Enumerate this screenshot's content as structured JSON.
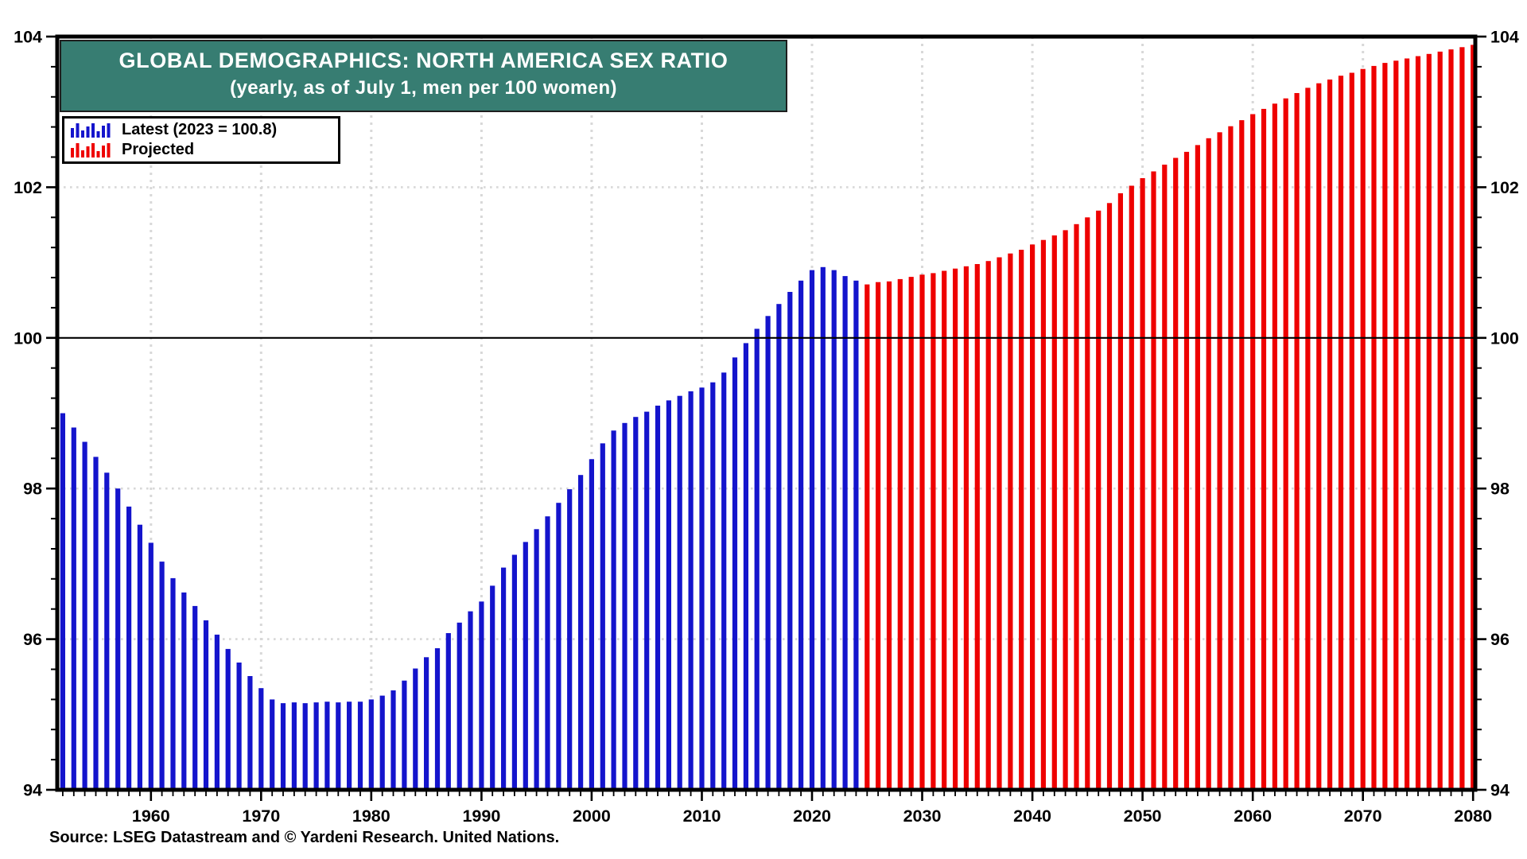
{
  "title": {
    "line1": "GLOBAL DEMOGRAPHICS: NORTH AMERICA SEX RATIO",
    "line2": "(yearly, as of July 1, men per 100 women)"
  },
  "legend": {
    "items": [
      {
        "label": "Latest (2023 = 100.8)",
        "color": "#1414CC"
      },
      {
        "label": "Projected",
        "color": "#EE0000"
      }
    ]
  },
  "source": "Source: LSEG Datastream and © Yardeni Research. United Nations.",
  "colors": {
    "title_background": "#377D72",
    "title_text": "#FFFFFF",
    "latest_bar": "#1414CC",
    "projected_bar": "#EE0000",
    "gridline": "#D8D8D8",
    "axis": "#000000",
    "reference_line": "#000000"
  },
  "chart_data": {
    "type": "bar",
    "title": "GLOBAL DEMOGRAPHICS: NORTH AMERICA SEX RATIO",
    "subtitle": "(yearly, as of July 1, men per 100 women)",
    "xlabel": "",
    "ylabel": "men per 100 women",
    "ylim": [
      94,
      104
    ],
    "x_range": [
      1951.5,
      2080.2
    ],
    "y_major_ticks": [
      94,
      96,
      98,
      100,
      102,
      104
    ],
    "y_minor_step": 0.4,
    "x_major_ticks": [
      1960,
      1970,
      1980,
      1990,
      2000,
      2010,
      2020,
      2030,
      2040,
      2050,
      2060,
      2070,
      2080
    ],
    "x_minor_step": 1,
    "reference_line_y": 100,
    "grid": "dotted",
    "legend_position": "top-left",
    "series": [
      {
        "name": "Latest (2023 = 100.8)",
        "color": "#1414CC",
        "start_year": 1952,
        "end_year": 2024,
        "values": [
          99.0,
          98.81,
          98.62,
          98.42,
          98.21,
          98.0,
          97.76,
          97.52,
          97.28,
          97.03,
          96.81,
          96.62,
          96.44,
          96.25,
          96.06,
          95.87,
          95.69,
          95.51,
          95.35,
          95.2,
          95.15,
          95.16,
          95.15,
          95.16,
          95.17,
          95.16,
          95.17,
          95.17,
          95.2,
          95.25,
          95.32,
          95.45,
          95.61,
          95.76,
          95.88,
          96.08,
          96.22,
          96.37,
          96.5,
          96.71,
          96.95,
          97.12,
          97.29,
          97.46,
          97.63,
          97.81,
          97.99,
          98.18,
          98.39,
          98.6,
          98.77,
          98.87,
          98.95,
          99.02,
          99.1,
          99.17,
          99.23,
          99.29,
          99.34,
          99.41,
          99.54,
          99.74,
          99.93,
          100.12,
          100.29,
          100.45,
          100.61,
          100.76,
          100.9,
          100.94,
          100.9,
          100.82,
          100.76
        ]
      },
      {
        "name": "Projected",
        "color": "#EE0000",
        "start_year": 2025,
        "end_year": 2080,
        "values": [
          100.71,
          100.74,
          100.75,
          100.78,
          100.81,
          100.84,
          100.86,
          100.89,
          100.92,
          100.95,
          100.98,
          101.02,
          101.07,
          101.12,
          101.17,
          101.24,
          101.3,
          101.36,
          101.43,
          101.51,
          101.6,
          101.69,
          101.79,
          101.92,
          102.02,
          102.12,
          102.21,
          102.3,
          102.39,
          102.47,
          102.56,
          102.65,
          102.73,
          102.81,
          102.89,
          102.97,
          103.04,
          103.11,
          103.18,
          103.25,
          103.32,
          103.38,
          103.43,
          103.48,
          103.52,
          103.57,
          103.61,
          103.65,
          103.68,
          103.71,
          103.74,
          103.77,
          103.8,
          103.83,
          103.86,
          103.89
        ]
      }
    ]
  }
}
